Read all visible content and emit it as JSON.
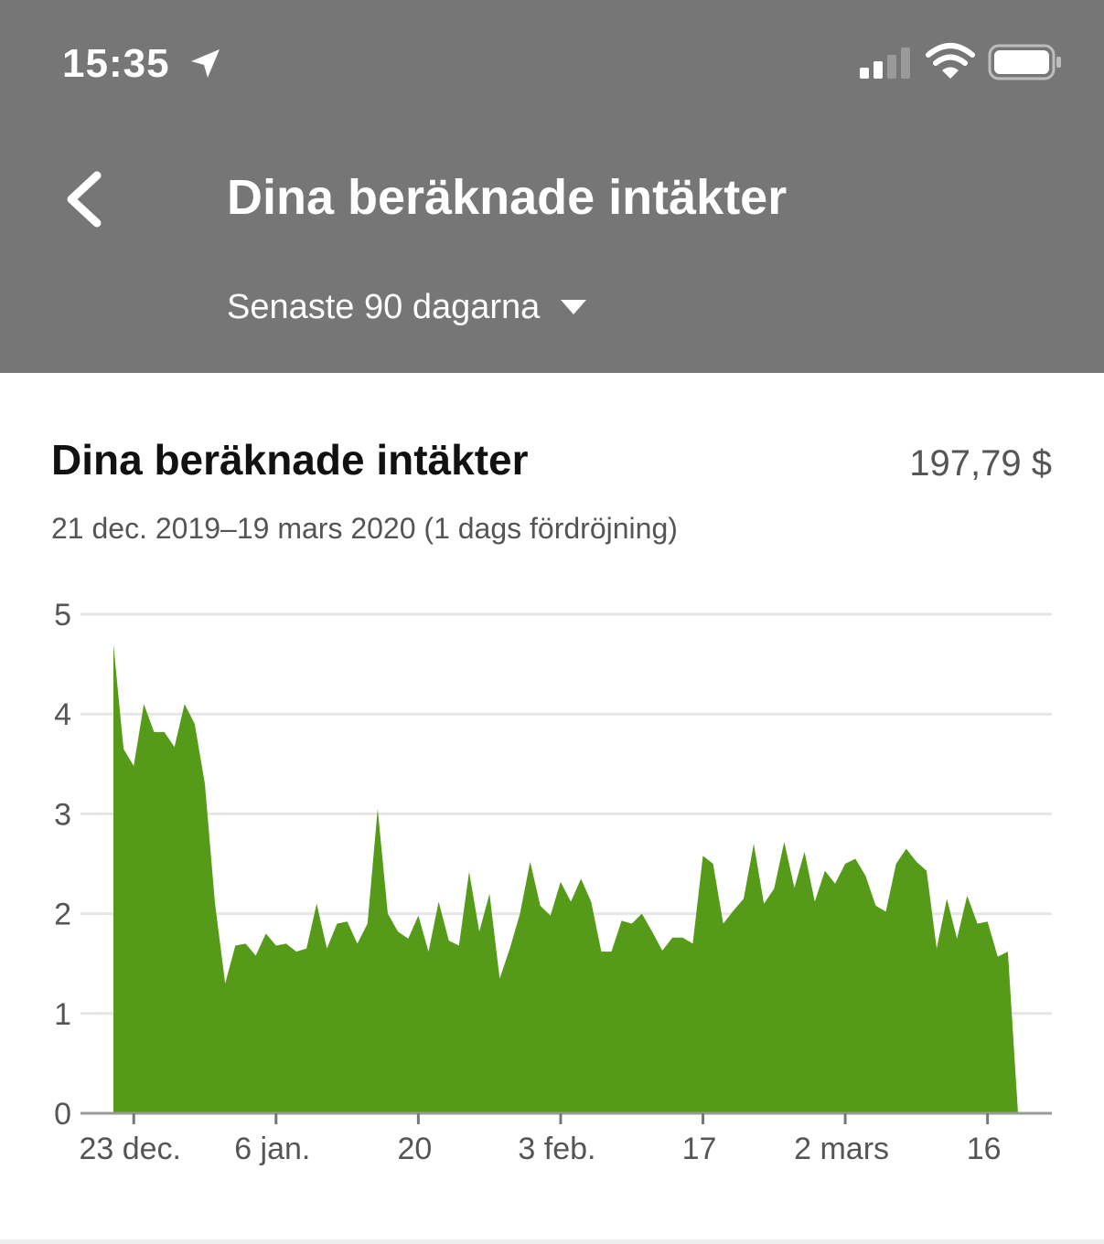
{
  "status_bar": {
    "time": "15:35",
    "icons": [
      "location-arrow-icon",
      "cellular-signal-icon",
      "wifi-icon",
      "battery-icon"
    ]
  },
  "header": {
    "back_icon": "chevron-left-icon",
    "title": "Dina beräknade intäkter",
    "period": {
      "selected": "Senaste 90 dagarna",
      "icon": "caret-down-icon"
    },
    "background": "#767676"
  },
  "card": {
    "title": "Dina beräknade intäkter",
    "total": "197,79 $",
    "range": "21 dec. 2019–19 mars 2020 (1 dags fördröjning)"
  },
  "chart_data": {
    "type": "area",
    "color": "#559a18",
    "ylim": [
      0,
      5
    ],
    "y_ticks": [
      "0",
      "1",
      "2",
      "3",
      "4",
      "5"
    ],
    "x_ticks": [
      {
        "day": 2,
        "label": "23 dec."
      },
      {
        "day": 16,
        "label": "6 jan."
      },
      {
        "day": 30,
        "label": "20"
      },
      {
        "day": 44,
        "label": "3 feb."
      },
      {
        "day": 58,
        "label": "17"
      },
      {
        "day": 72,
        "label": "2 mars"
      },
      {
        "day": 86,
        "label": "16"
      }
    ],
    "grid": true,
    "series": [
      {
        "values": [
          4.7,
          3.65,
          3.48,
          4.1,
          3.82,
          3.82,
          3.67,
          4.1,
          3.9,
          3.3,
          2.1,
          1.3,
          1.68,
          1.7,
          1.58,
          1.8,
          1.68,
          1.7,
          1.62,
          1.65,
          2.1,
          1.65,
          1.9,
          1.92,
          1.7,
          1.9,
          3.05,
          2.0,
          1.82,
          1.75,
          1.98,
          1.62,
          2.12,
          1.73,
          1.68,
          2.42,
          1.82,
          2.2,
          1.35,
          1.65,
          2.0,
          2.52,
          2.08,
          1.98,
          2.32,
          2.12,
          2.35,
          2.12,
          1.62,
          1.62,
          1.93,
          1.9,
          2.0,
          1.82,
          1.63,
          1.76,
          1.76,
          1.7,
          2.58,
          2.5,
          1.9,
          2.03,
          2.15,
          2.7,
          2.1,
          2.25,
          2.72,
          2.26,
          2.62,
          2.12,
          2.43,
          2.3,
          2.5,
          2.55,
          2.38,
          2.08,
          2.02,
          2.5,
          2.65,
          2.52,
          2.43,
          1.65,
          2.15,
          1.75,
          2.18,
          1.9,
          1.92,
          1.57,
          1.62,
          0.0
        ]
      }
    ]
  }
}
